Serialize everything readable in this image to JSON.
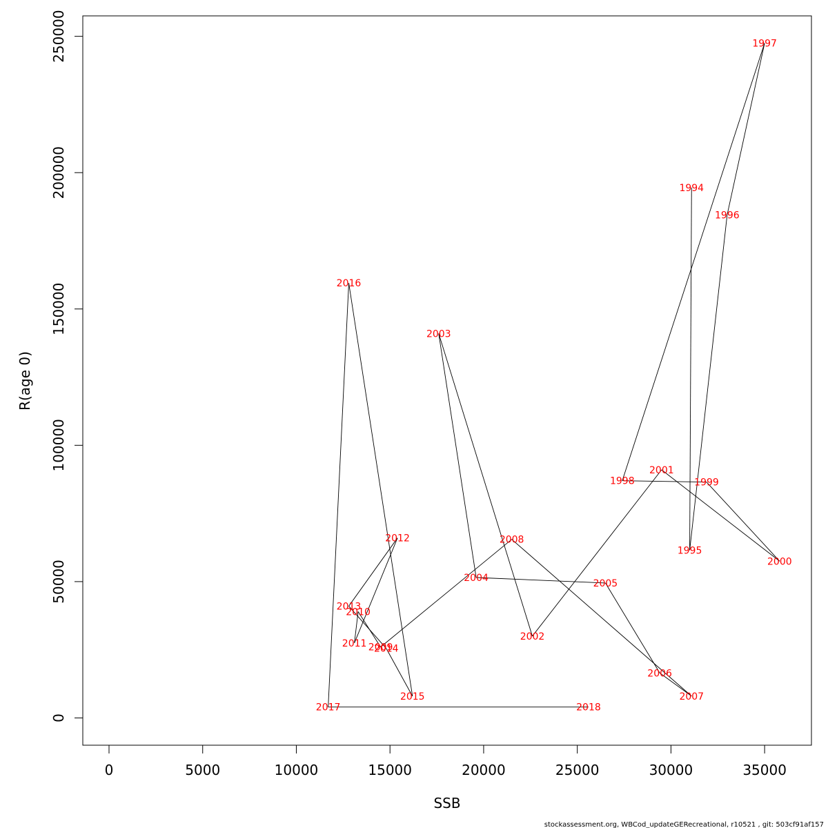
{
  "chart_data": {
    "type": "line",
    "title": "",
    "xlabel": "SSB",
    "ylabel": "R(age 0)",
    "xlim": [
      -1400,
      37500
    ],
    "ylim": [
      -10000,
      257500
    ],
    "xticks": [
      0,
      5000,
      10000,
      15000,
      20000,
      25000,
      30000,
      35000
    ],
    "yticks": [
      0,
      50000,
      100000,
      150000,
      200000,
      250000
    ],
    "grid": false,
    "legend": "none",
    "line_color": "#000000",
    "label_color": "#ff0000",
    "points": [
      {
        "year": "1994",
        "x": 31100,
        "y": 194500
      },
      {
        "year": "1995",
        "x": 31000,
        "y": 61500
      },
      {
        "year": "1996",
        "x": 33000,
        "y": 184500
      },
      {
        "year": "1997",
        "x": 35000,
        "y": 247500
      },
      {
        "year": "1998",
        "x": 27400,
        "y": 87000
      },
      {
        "year": "1999",
        "x": 31900,
        "y": 86500
      },
      {
        "year": "2000",
        "x": 35800,
        "y": 57500
      },
      {
        "year": "2001",
        "x": 29500,
        "y": 91000
      },
      {
        "year": "2002",
        "x": 22600,
        "y": 30000
      },
      {
        "year": "2003",
        "x": 17600,
        "y": 141000
      },
      {
        "year": "2004",
        "x": 19600,
        "y": 51500
      },
      {
        "year": "2005",
        "x": 26500,
        "y": 49500
      },
      {
        "year": "2006",
        "x": 29400,
        "y": 16500
      },
      {
        "year": "2007",
        "x": 31100,
        "y": 8000
      },
      {
        "year": "2008",
        "x": 21500,
        "y": 65500
      },
      {
        "year": "2009",
        "x": 14500,
        "y": 26000
      },
      {
        "year": "2010",
        "x": 13300,
        "y": 39000
      },
      {
        "year": "2011",
        "x": 13100,
        "y": 27500
      },
      {
        "year": "2012",
        "x": 15400,
        "y": 66000
      },
      {
        "year": "2013",
        "x": 12800,
        "y": 41000
      },
      {
        "year": "2014",
        "x": 14800,
        "y": 25500
      },
      {
        "year": "2015",
        "x": 16200,
        "y": 8000
      },
      {
        "year": "2016",
        "x": 12800,
        "y": 159500
      },
      {
        "year": "2017",
        "x": 11700,
        "y": 4000
      },
      {
        "year": "2018",
        "x": 25600,
        "y": 4000
      }
    ]
  },
  "footer": "stockassessment.org, WBCod_updateGERecreational, r10521 , git: 503cf91af157"
}
